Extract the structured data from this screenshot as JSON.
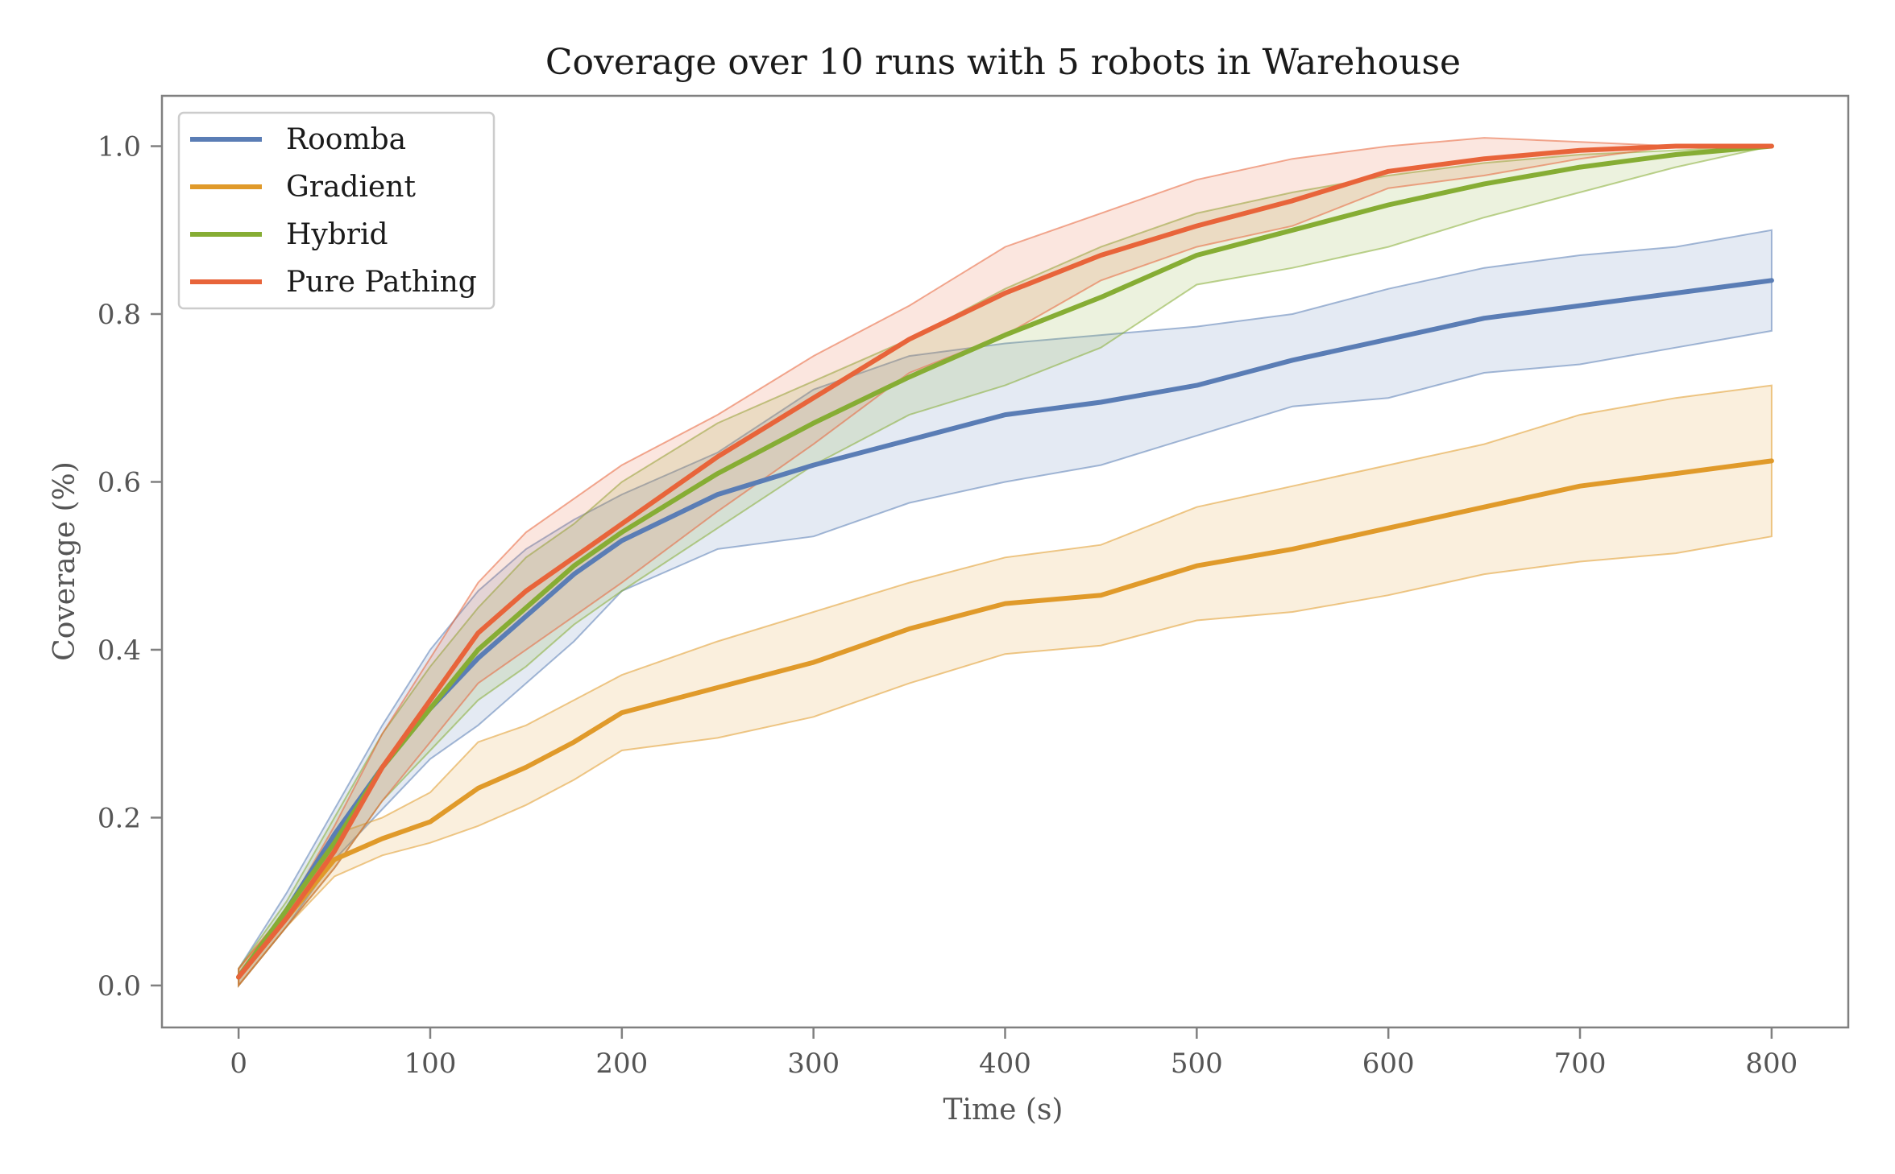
{
  "chart_data": {
    "type": "line",
    "title": "Coverage over 10 runs with 5 robots in Warehouse",
    "xlabel": "Time (s)",
    "ylabel": "Coverage (%)",
    "xlim": [
      -40,
      840
    ],
    "ylim": [
      -0.05,
      1.06
    ],
    "xticks": [
      0,
      100,
      200,
      300,
      400,
      500,
      600,
      700,
      800
    ],
    "xtick_labels": [
      "0",
      "100",
      "200",
      "300",
      "400",
      "500",
      "600",
      "700",
      "800"
    ],
    "yticks": [
      0.0,
      0.2,
      0.4,
      0.6,
      0.8,
      1.0
    ],
    "ytick_labels": [
      "0.0",
      "0.2",
      "0.4",
      "0.6",
      "0.8",
      "1.0"
    ],
    "grid": false,
    "legend_position": "top-left",
    "x": [
      0,
      25,
      50,
      75,
      100,
      125,
      150,
      175,
      200,
      250,
      300,
      350,
      400,
      450,
      500,
      550,
      600,
      650,
      700,
      750,
      800
    ],
    "series": [
      {
        "name": "Roomba",
        "color": "#5a7db5",
        "mean": [
          0.01,
          0.09,
          0.18,
          0.26,
          0.33,
          0.39,
          0.44,
          0.49,
          0.53,
          0.585,
          0.62,
          0.65,
          0.68,
          0.695,
          0.715,
          0.745,
          0.77,
          0.795,
          0.81,
          0.825,
          0.84
        ],
        "upper": [
          0.02,
          0.11,
          0.21,
          0.31,
          0.4,
          0.47,
          0.52,
          0.555,
          0.585,
          0.635,
          0.71,
          0.75,
          0.765,
          0.775,
          0.785,
          0.8,
          0.83,
          0.855,
          0.87,
          0.88,
          0.9
        ],
        "lower": [
          0.0,
          0.07,
          0.15,
          0.21,
          0.27,
          0.31,
          0.36,
          0.41,
          0.47,
          0.52,
          0.535,
          0.575,
          0.6,
          0.62,
          0.655,
          0.69,
          0.7,
          0.73,
          0.74,
          0.76,
          0.78
        ]
      },
      {
        "name": "Gradient",
        "color": "#e09a2a",
        "mean": [
          0.01,
          0.08,
          0.15,
          0.175,
          0.195,
          0.235,
          0.26,
          0.29,
          0.325,
          0.355,
          0.385,
          0.425,
          0.455,
          0.465,
          0.5,
          0.52,
          0.545,
          0.57,
          0.595,
          0.61,
          0.625
        ],
        "upper": [
          0.02,
          0.09,
          0.18,
          0.2,
          0.23,
          0.29,
          0.31,
          0.34,
          0.37,
          0.41,
          0.445,
          0.48,
          0.51,
          0.525,
          0.57,
          0.595,
          0.62,
          0.645,
          0.68,
          0.7,
          0.715
        ],
        "lower": [
          0.0,
          0.07,
          0.13,
          0.155,
          0.17,
          0.19,
          0.215,
          0.245,
          0.28,
          0.295,
          0.32,
          0.36,
          0.395,
          0.405,
          0.435,
          0.445,
          0.465,
          0.49,
          0.505,
          0.515,
          0.535
        ]
      },
      {
        "name": "Hybrid",
        "color": "#86ad34",
        "mean": [
          0.01,
          0.09,
          0.17,
          0.26,
          0.33,
          0.4,
          0.45,
          0.5,
          0.54,
          0.61,
          0.67,
          0.725,
          0.775,
          0.82,
          0.87,
          0.9,
          0.93,
          0.955,
          0.975,
          0.99,
          1.0
        ],
        "upper": [
          0.02,
          0.1,
          0.2,
          0.3,
          0.38,
          0.45,
          0.51,
          0.55,
          0.6,
          0.67,
          0.72,
          0.77,
          0.83,
          0.88,
          0.92,
          0.945,
          0.965,
          0.98,
          0.99,
          0.995,
          1.0
        ],
        "lower": [
          0.0,
          0.07,
          0.14,
          0.22,
          0.28,
          0.34,
          0.38,
          0.43,
          0.47,
          0.545,
          0.62,
          0.68,
          0.715,
          0.76,
          0.835,
          0.855,
          0.88,
          0.915,
          0.945,
          0.975,
          1.0
        ]
      },
      {
        "name": "Pure Pathing",
        "color": "#e8643a",
        "mean": [
          0.01,
          0.08,
          0.16,
          0.26,
          0.34,
          0.42,
          0.47,
          0.51,
          0.55,
          0.63,
          0.7,
          0.77,
          0.825,
          0.87,
          0.905,
          0.935,
          0.97,
          0.985,
          0.995,
          1.0,
          1.0
        ],
        "upper": [
          0.02,
          0.09,
          0.19,
          0.3,
          0.39,
          0.48,
          0.54,
          0.58,
          0.62,
          0.68,
          0.75,
          0.81,
          0.88,
          0.92,
          0.96,
          0.985,
          1.0,
          1.01,
          1.005,
          1.0,
          1.0
        ],
        "lower": [
          0.0,
          0.07,
          0.14,
          0.22,
          0.29,
          0.36,
          0.4,
          0.44,
          0.48,
          0.565,
          0.645,
          0.73,
          0.775,
          0.84,
          0.88,
          0.905,
          0.95,
          0.965,
          0.985,
          1.0,
          1.0
        ]
      }
    ]
  }
}
